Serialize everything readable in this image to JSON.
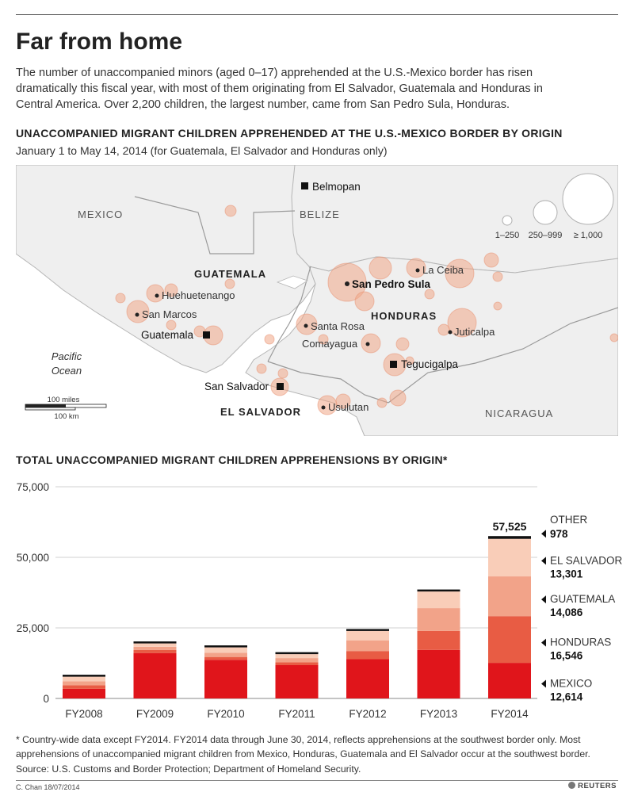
{
  "title": "Far from home",
  "intro": "The number of unaccompanied minors (aged 0–17) apprehended at the U.S.-Mexico border has risen dramatically this fiscal year, with most of them originating from El Salvador, Guatemala and Honduras in Central America. Over 2,200 children, the largest number, came from San Pedro Sula, Honduras.",
  "map_section": {
    "heading": "UNACCOMPANIED MIGRANT CHILDREN APPREHENDED AT THE U.S.-MEXICO BORDER BY ORIGIN",
    "subheading": "January 1 to May 14, 2014 (for Guatemala, El Salvador and Honduras only)",
    "countries": [
      "MEXICO",
      "BELIZE",
      "GUATEMALA",
      "HONDURAS",
      "EL SALVADOR",
      "NICARAGUA"
    ],
    "capitals": [
      "Belmopan",
      "Guatemala",
      "San Salvador",
      "Tegucigalpa"
    ],
    "cities": [
      "Huehuetenango",
      "San Marcos",
      "San Pedro Sula",
      "La Ceiba",
      "Santa Rosa",
      "Comayagua",
      "Juticalpa",
      "Usulutan"
    ],
    "ocean": [
      "Pacific",
      "Ocean"
    ],
    "legend": [
      "1–250",
      "250–999",
      "≥ 1,000"
    ],
    "scale": [
      "100 miles",
      "100 km"
    ],
    "colors": {
      "bubble": "#f1a889",
      "land": "#efefef",
      "water": "#ffffff",
      "border": "#b5b5b5"
    }
  },
  "chart_section": {
    "heading": "TOTAL UNACCOMPANIED MIGRANT CHILDREN APPREHENSIONS BY ORIGIN*"
  },
  "chart_data": {
    "type": "bar",
    "stacked": true,
    "categories": [
      "FY2008",
      "FY2009",
      "FY2010",
      "FY2011",
      "FY2012",
      "FY2013",
      "FY2014"
    ],
    "ylim": [
      0,
      75000
    ],
    "yticks": [
      "0",
      "25,000",
      "50,000",
      "75,000"
    ],
    "grid": true,
    "total_label": "57,525",
    "series": [
      {
        "name": "MEXICO",
        "value_label": "12,614",
        "color": "#e0151b",
        "values": [
          3400,
          16100,
          13700,
          11800,
          13900,
          17200,
          12614
        ]
      },
      {
        "name": "HONDURAS",
        "value_label": "16,546",
        "color": "#e85c44",
        "values": [
          1300,
          1100,
          1000,
          1000,
          2900,
          6700,
          16546
        ]
      },
      {
        "name": "GUATEMALA",
        "value_label": "14,086",
        "color": "#f2a389",
        "values": [
          1400,
          1100,
          1500,
          1500,
          3800,
          8100,
          14086
        ]
      },
      {
        "name": "EL SALVADOR",
        "value_label": "13,301",
        "color": "#f9cdb8",
        "values": [
          1600,
          1200,
          1900,
          1400,
          3300,
          5900,
          13301
        ]
      },
      {
        "name": "OTHER",
        "value_label": "978",
        "color": "#111111",
        "values": [
          400,
          300,
          300,
          300,
          400,
          700,
          978
        ]
      }
    ]
  },
  "footnote": "* Country-wide data except FY2014. FY2014 data through June 30, 2014, reflects apprehensions at the southwest border only. Most apprehensions of unaccompanied migrant children from Mexico, Honduras, Guatemala and El Salvador occur at the southwest border.",
  "source": "Source: U.S. Customs and Border Protection; Department of Homeland Security.",
  "credit": "C. Chan 18/07/2014",
  "logo": "REUTERS"
}
